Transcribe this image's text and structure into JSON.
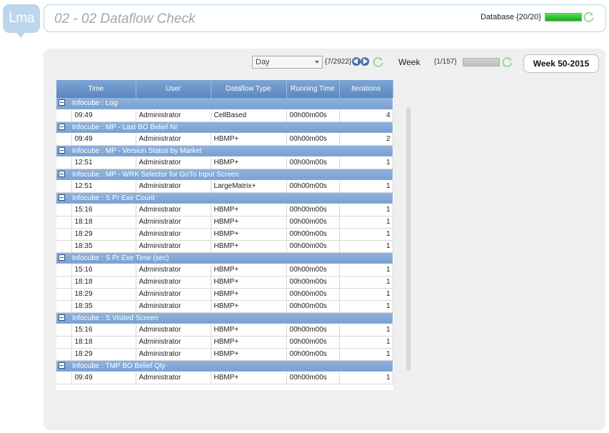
{
  "logo": "Lma",
  "header": {
    "title": "02 - 02 Dataflow Check",
    "database_label": "Database",
    "database_count": "{20/20}",
    "database_progress": 1.0
  },
  "toolbar": {
    "period_select": "Day",
    "period_position": "{7/2922}",
    "week_label": "Week",
    "week_position": "{1/157}",
    "week_progress": 0.0,
    "week_button": "Week 50-2015"
  },
  "table": {
    "columns": [
      "Time",
      "User",
      "Dataflow Type",
      "Running Time",
      "Iterations"
    ],
    "groups": [
      {
        "title": "Infocube : Log",
        "rows": [
          [
            "09:49",
            "Administrator",
            "CellBased",
            "00h00m00s",
            "4"
          ]
        ]
      },
      {
        "title": "Infocube : MP - Last BO Belief Nr",
        "rows": [
          [
            "09:49",
            "Administrator",
            "HBMP+",
            "00h00m00s",
            "2"
          ]
        ]
      },
      {
        "title": "Infocube : MP - Version Status by Market",
        "rows": [
          [
            "12:51",
            "Administrator",
            "HBMP+",
            "00h00m00s",
            "1"
          ]
        ]
      },
      {
        "title": "Infocube : MP - WRK Selector for GoTo Input Screen",
        "rows": [
          [
            "12:51",
            "Administrator",
            "LargeMatrix+",
            "00h00m00s",
            "1"
          ]
        ]
      },
      {
        "title": "Infocube : S Pr Exe Count",
        "rows": [
          [
            "15:16",
            "Administrator",
            "HBMP+",
            "00h00m00s",
            "1"
          ],
          [
            "18:18",
            "Administrator",
            "HBMP+",
            "00h00m00s",
            "1"
          ],
          [
            "18:29",
            "Administrator",
            "HBMP+",
            "00h00m00s",
            "1"
          ],
          [
            "18:35",
            "Administrator",
            "HBMP+",
            "00h00m00s",
            "1"
          ]
        ]
      },
      {
        "title": "Infocube : S Pr Exe Time (sec)",
        "rows": [
          [
            "15:16",
            "Administrator",
            "HBMP+",
            "00h00m00s",
            "1"
          ],
          [
            "18:18",
            "Administrator",
            "HBMP+",
            "00h00m00s",
            "1"
          ],
          [
            "18:29",
            "Administrator",
            "HBMP+",
            "00h00m00s",
            "1"
          ],
          [
            "18:35",
            "Administrator",
            "HBMP+",
            "00h00m00s",
            "1"
          ]
        ]
      },
      {
        "title": "Infocube : S Visited Screen",
        "rows": [
          [
            "15:16",
            "Administrator",
            "HBMP+",
            "00h00m00s",
            "1"
          ],
          [
            "18:18",
            "Administrator",
            "HBMP+",
            "00h00m00s",
            "1"
          ],
          [
            "18:29",
            "Administrator",
            "HBMP+",
            "00h00m00s",
            "1"
          ]
        ]
      },
      {
        "title": "Infocube : TMP BO Belief Qty",
        "rows": [
          [
            "09:49",
            "Administrator",
            "HBMP+",
            "00h00m00s",
            "1"
          ]
        ]
      }
    ]
  }
}
